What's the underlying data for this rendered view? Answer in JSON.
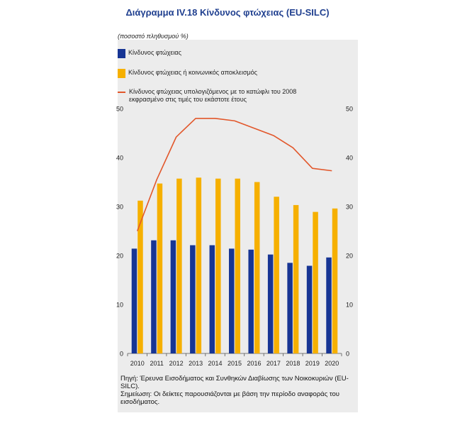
{
  "title": "Διάγραμμα IV.18 Κίνδυνος φτώχειας (EU-SILC)",
  "unit_label": "(ποσοστό πληθυσμού %)",
  "colors": {
    "series_blue": "#173594",
    "series_orange": "#f6b000",
    "series_line": "#e2572b",
    "title": "#1f3f8f",
    "panel": "#ececec"
  },
  "legend": [
    {
      "label": "Κίνδυνος φτώχειας",
      "kind": "bar",
      "color": "#173594"
    },
    {
      "label": "Κίνδυνος φτώχειας ή κοινωνικός αποκλεισμός",
      "kind": "bar",
      "color": "#f6b000"
    },
    {
      "label": "Κίνδυνος φτώχειας υπολογιζόμενος με το κατώφλι του 2008 εκφρασμένο στις τιμές του εκάστοτε έτους",
      "kind": "line",
      "color": "#e2572b"
    }
  ],
  "chart_data": {
    "type": "bar",
    "categories": [
      "2010",
      "2011",
      "2012",
      "2013",
      "2014",
      "2015",
      "2016",
      "2017",
      "2018",
      "2019",
      "2020"
    ],
    "series": [
      {
        "name": "Κίνδυνος φτώχειας",
        "type": "bar",
        "values": [
          21.4,
          23.1,
          23.1,
          22.1,
          22.1,
          21.4,
          21.2,
          20.2,
          18.5,
          17.9,
          19.6
        ]
      },
      {
        "name": "Κίνδυνος φτώχειας ή κοινωνικός αποκλεισμός",
        "type": "bar",
        "values": [
          31.2,
          34.7,
          35.7,
          35.9,
          35.7,
          35.7,
          35.0,
          32.0,
          30.3,
          28.9,
          29.6
        ]
      },
      {
        "name": "Κίνδυνος φτώχειας υπολογιζόμενος με το κατώφλι του 2008 εκφρασμένο στις τιμές του εκάστοτε έτους",
        "type": "line",
        "values": [
          25.0,
          35.5,
          44.2,
          48.0,
          48.0,
          47.5,
          46.0,
          44.5,
          42.0,
          37.8,
          37.3
        ]
      }
    ],
    "ylim": [
      0,
      50
    ],
    "yticks": [
      "0",
      "10",
      "20",
      "30",
      "40",
      "50"
    ],
    "y_axis_sides": "left-and-right",
    "grid": false,
    "legend_position": "top"
  },
  "notes": [
    "Πηγή: Έρευνα Εισοδήματος και Συνθηκών Διαβίωσης των Νοικοκυριών (EU-SILC).",
    "Σημείωση: Οι δείκτες παρουσιάζονται με βάση την περίοδο αναφοράς του εισοδήματος."
  ]
}
